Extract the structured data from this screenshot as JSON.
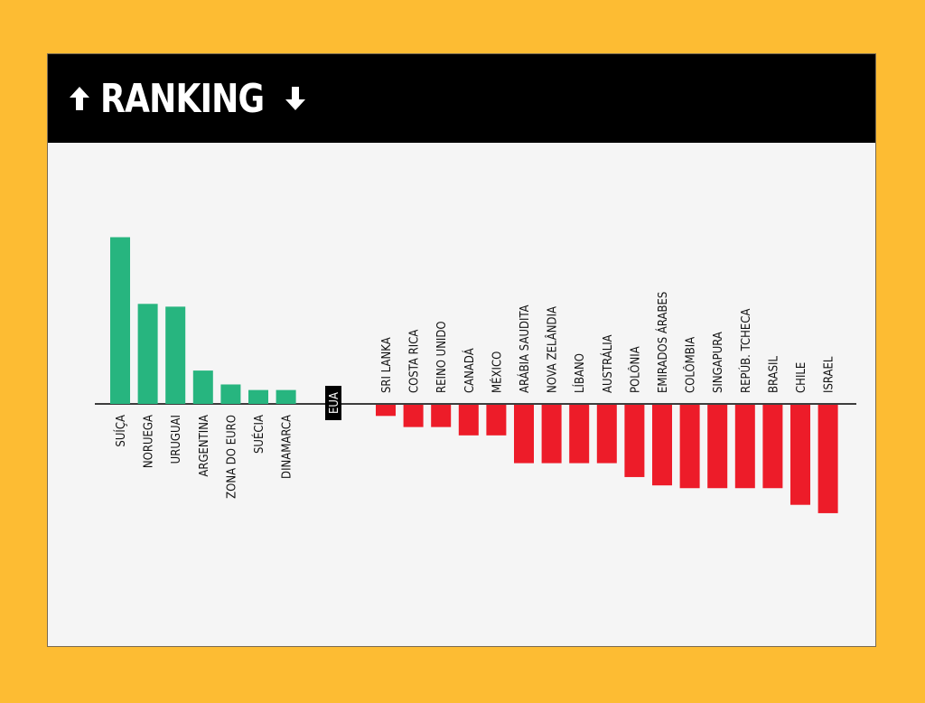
{
  "header": {
    "title": "RANKING"
  },
  "colors": {
    "positive": "#27B57F",
    "negative": "#ED1C29",
    "baseline": "#000000",
    "highlight_bg": "#000000",
    "highlight_text": "#FFFFFF"
  },
  "icons": {
    "left": "arrow-up-icon",
    "right": "arrow-down-icon"
  },
  "chart_data": {
    "type": "bar",
    "title": "RANKING",
    "xlabel": "",
    "ylabel": "",
    "categories": [
      "SUÍÇA",
      "NORUEGA",
      "URUGUAI",
      "ARGENTINA",
      "ZONA DO EURO",
      "SUÉCIA",
      "DINAMARCA",
      "EUA",
      "SRI LANKA",
      "COSTA RICA",
      "REINO UNIDO",
      "CANADÁ",
      "MÉXICO",
      "ARÁBIA SAUDITA",
      "NOVA ZELÂNDIA",
      "LÍBANO",
      "AUSTRÁLIA",
      "POLÔNIA",
      "EMIRADOS ÁRABES",
      "COLÔMBIA",
      "SINGAPURA",
      "REPÚB. TCHECA",
      "BRASIL",
      "CHILE",
      "ISRAEL"
    ],
    "values": [
      3.0,
      1.8,
      1.75,
      0.6,
      0.35,
      0.25,
      0.25,
      0,
      -0.2,
      -0.4,
      -0.4,
      -0.55,
      -0.55,
      -1.05,
      -1.05,
      -1.05,
      -1.05,
      -1.3,
      -1.45,
      -1.5,
      -1.5,
      -1.5,
      -1.5,
      -1.8,
      -1.95
    ],
    "highlight": "EUA"
  }
}
